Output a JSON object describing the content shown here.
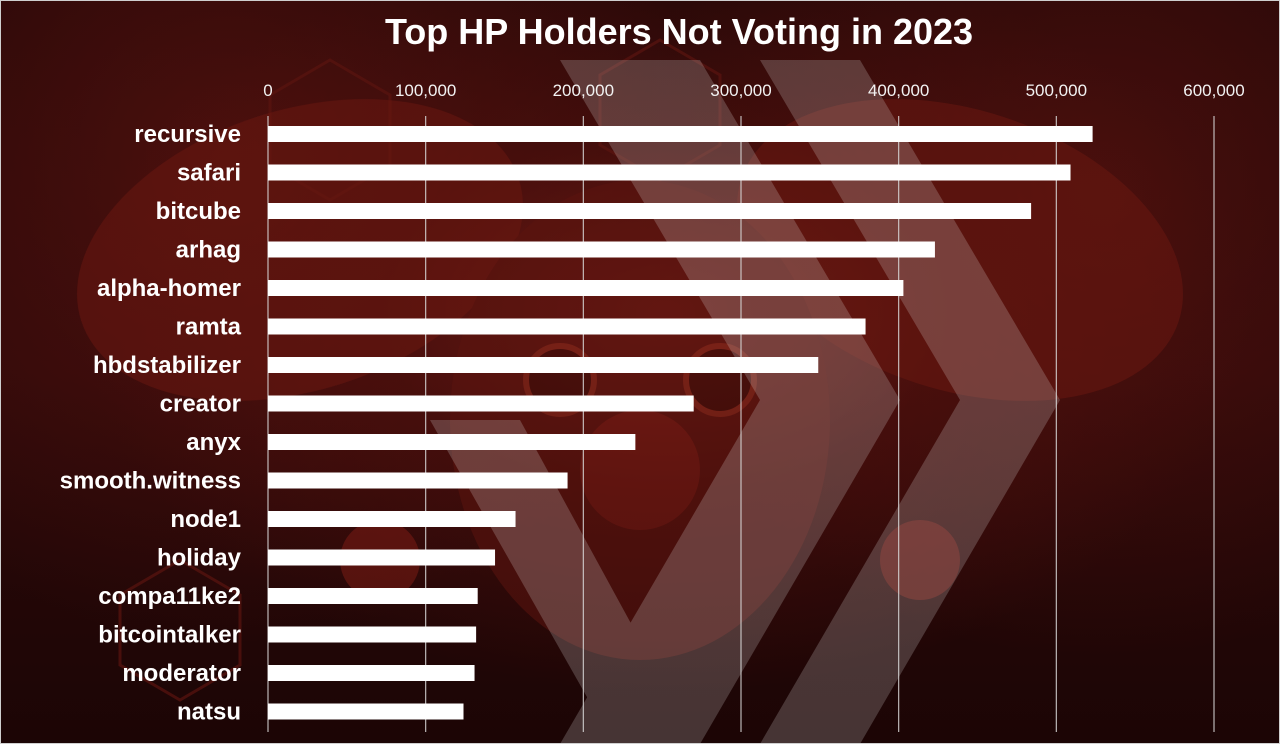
{
  "colors": {
    "bar": "#ffffff",
    "text": "#ffffff",
    "grid": "#d9d9d9",
    "background": "#2a0808",
    "accent": "#b0281e"
  },
  "chart_data": {
    "type": "bar",
    "orientation": "horizontal",
    "title": "Top HP Holders Not Voting in 2023",
    "xlabel": "",
    "ylabel": "",
    "xlim": [
      0,
      600000
    ],
    "x_ticks": [
      0,
      100000,
      200000,
      300000,
      400000,
      500000,
      600000
    ],
    "x_tick_labels": [
      "0",
      "100,000",
      "200,000",
      "300,000",
      "400,000",
      "500,000",
      "600,000"
    ],
    "x_axis_position": "top",
    "grid": true,
    "categories": [
      "recursive",
      "safari",
      "bitcube",
      "arhag",
      "alpha-homer",
      "ramta",
      "hbdstabilizer",
      "creator",
      "anyx",
      "smooth.witness",
      "node1",
      "holiday",
      "compa11ke2",
      "bitcointalker",
      "moderator",
      "natsu"
    ],
    "values": [
      523000,
      509000,
      484000,
      423000,
      403000,
      379000,
      349000,
      270000,
      233000,
      190000,
      157000,
      144000,
      133000,
      132000,
      131000,
      124000
    ]
  }
}
